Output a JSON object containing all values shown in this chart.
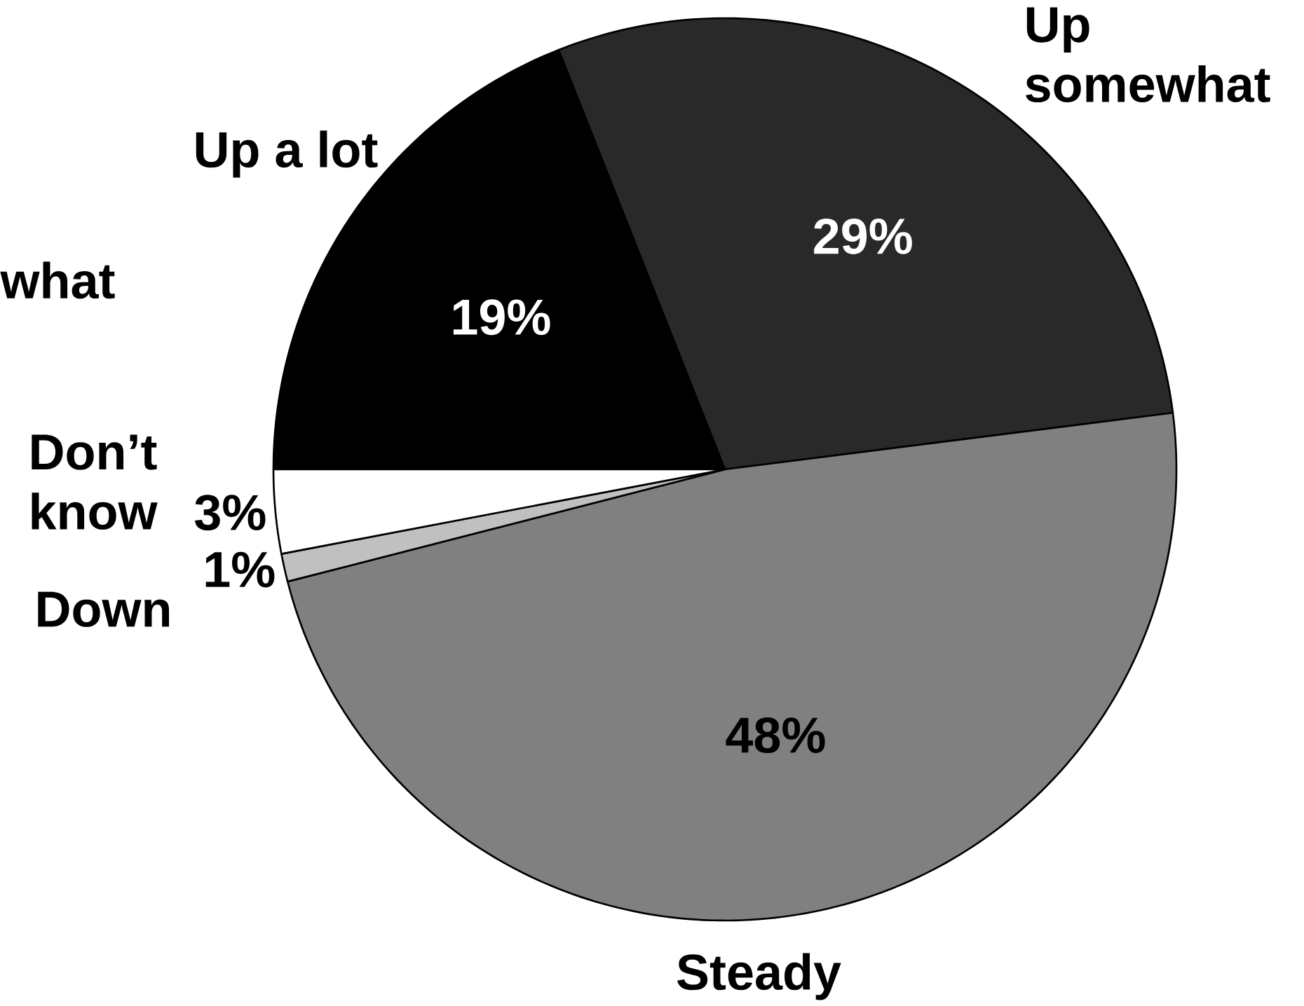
{
  "chart_data": {
    "type": "pie",
    "categories": [
      "Up a lot",
      "Up somewhat",
      "Steady",
      "Down",
      "Don’t know"
    ],
    "values": [
      19,
      29,
      48,
      1,
      3
    ],
    "colors": [
      "#000000",
      "#292929",
      "#808080",
      "#c0c0c0",
      "#ffffff"
    ],
    "value_labels": [
      "19%",
      "29%",
      "48%",
      "1%",
      "3%"
    ],
    "annotations": [
      "what"
    ]
  }
}
